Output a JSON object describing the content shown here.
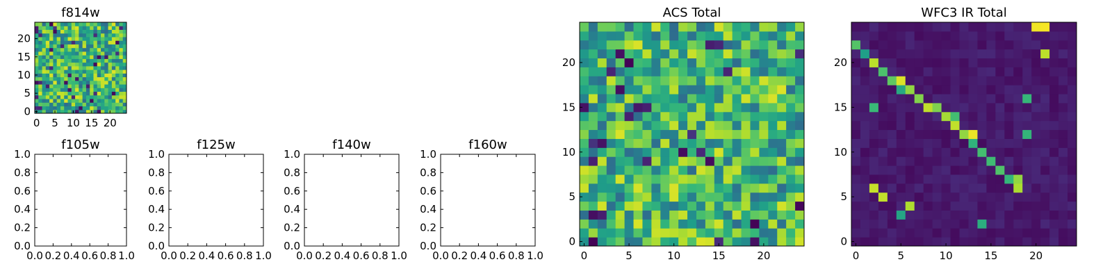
{
  "chart_data": [
    {
      "type": "heatmap",
      "id": "f814w",
      "title": "f814w",
      "grid": [
        25,
        25
      ],
      "colormap": "viridis",
      "x_ticks": [
        "0",
        "5",
        "10",
        "15",
        "20"
      ],
      "y_ticks": [
        "0",
        "5",
        "10",
        "15",
        "20"
      ],
      "pattern": "noise-high",
      "seed": 11
    },
    {
      "type": "empty",
      "id": "f105w",
      "title": "f105w",
      "xlim": [
        0,
        1
      ],
      "ylim": [
        0,
        1
      ],
      "x_ticks": [
        "0.0",
        "0.2",
        "0.4",
        "0.6",
        "0.8",
        "1.0"
      ],
      "y_ticks": [
        "0.0",
        "0.2",
        "0.4",
        "0.6",
        "0.8",
        "1.0"
      ]
    },
    {
      "type": "empty",
      "id": "f125w",
      "title": "f125w",
      "xlim": [
        0,
        1
      ],
      "ylim": [
        0,
        1
      ],
      "x_ticks": [
        "0.0",
        "0.2",
        "0.4",
        "0.6",
        "0.8",
        "1.0"
      ],
      "y_ticks": [
        "0.0",
        "0.2",
        "0.4",
        "0.6",
        "0.8",
        "1.0"
      ]
    },
    {
      "type": "empty",
      "id": "f140w",
      "title": "f140w",
      "xlim": [
        0,
        1
      ],
      "ylim": [
        0,
        1
      ],
      "x_ticks": [
        "0.0",
        "0.2",
        "0.4",
        "0.6",
        "0.8",
        "1.0"
      ],
      "y_ticks": [
        "0.0",
        "0.2",
        "0.4",
        "0.6",
        "0.8",
        "1.0"
      ]
    },
    {
      "type": "empty",
      "id": "f160w",
      "title": "f160w",
      "xlim": [
        0,
        1
      ],
      "ylim": [
        0,
        1
      ],
      "x_ticks": [
        "0.0",
        "0.2",
        "0.4",
        "0.6",
        "0.8",
        "1.0"
      ],
      "y_ticks": [
        "0.0",
        "0.2",
        "0.4",
        "0.6",
        "0.8",
        "1.0"
      ]
    },
    {
      "type": "heatmap",
      "id": "acs-total",
      "title": "ACS Total",
      "grid": [
        25,
        25
      ],
      "colormap": "viridis",
      "x_ticks": [
        "0",
        "5",
        "10",
        "15",
        "20"
      ],
      "y_ticks": [
        "0",
        "5",
        "10",
        "15",
        "20"
      ],
      "pattern": "noise-high",
      "seed": 37
    },
    {
      "type": "heatmap",
      "id": "wfc3-ir-total",
      "title": "WFC3 IR Total",
      "grid": [
        25,
        25
      ],
      "colormap": "viridis",
      "x_ticks": [
        "0",
        "5",
        "10",
        "15",
        "20"
      ],
      "y_ticks": [
        "0",
        "5",
        "10",
        "15",
        "20"
      ],
      "pattern": "diagonal-band",
      "bright_cells": [
        [
          0,
          22
        ],
        [
          1,
          21
        ],
        [
          2,
          20
        ],
        [
          3,
          19
        ],
        [
          4,
          18
        ],
        [
          5,
          18
        ],
        [
          6,
          17
        ],
        [
          5,
          17
        ],
        [
          7,
          16
        ],
        [
          8,
          15
        ],
        [
          9,
          15
        ],
        [
          10,
          14
        ],
        [
          11,
          13
        ],
        [
          11,
          14
        ],
        [
          12,
          12
        ],
        [
          13,
          12
        ],
        [
          13,
          11
        ],
        [
          14,
          10
        ],
        [
          15,
          9
        ],
        [
          16,
          8
        ],
        [
          17,
          7
        ],
        [
          18,
          7
        ],
        [
          18,
          6
        ],
        [
          19,
          12
        ],
        [
          19,
          16
        ],
        [
          20,
          24
        ],
        [
          21,
          24
        ],
        [
          21,
          21
        ],
        [
          3,
          5
        ],
        [
          2,
          6
        ],
        [
          5,
          3
        ],
        [
          6,
          4
        ],
        [
          14,
          2
        ],
        [
          2,
          15
        ]
      ],
      "seed": 53
    }
  ]
}
